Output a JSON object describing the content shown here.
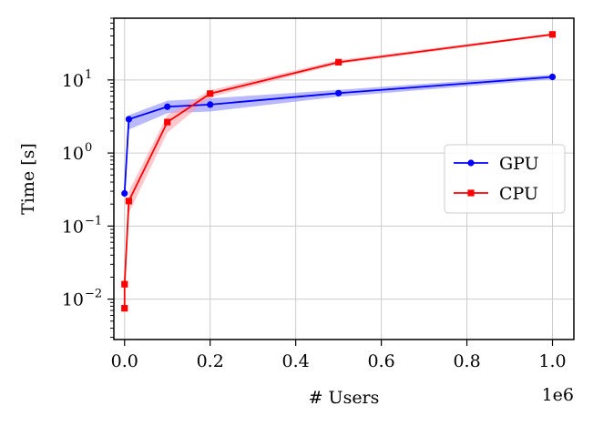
{
  "chart_data": {
    "type": "line",
    "title": "",
    "xlabel": "# Users",
    "ylabel": "Time [s]",
    "x_offset_label": "1e6",
    "x_scale": "linear",
    "y_scale": "log",
    "xlim": [
      -0.025,
      1.05
    ],
    "ylim": [
      0.0028,
      70
    ],
    "x_ticks": [
      0.0,
      0.2,
      0.4,
      0.6,
      0.8,
      1.0
    ],
    "x_tick_labels": [
      "0.0",
      "0.2",
      "0.4",
      "0.6",
      "0.8",
      "1.0"
    ],
    "y_ticks": [
      0.01,
      0.1,
      1,
      10
    ],
    "y_tick_base": [
      "10",
      "10",
      "10",
      "10"
    ],
    "y_tick_exp": [
      "−2",
      "−1",
      "0",
      "1"
    ],
    "grid": true,
    "legend_position": "center-right",
    "series": [
      {
        "name": "GPU",
        "color": "#0000ff",
        "band_color": "#8080ff",
        "marker": "circle",
        "x": [
          0.0,
          0.01,
          0.1,
          0.2,
          0.5,
          1.0
        ],
        "y": [
          0.28,
          2.9,
          4.3,
          4.6,
          6.6,
          11.0
        ],
        "y_low": [
          0.27,
          2.1,
          3.5,
          3.7,
          5.9,
          10.2
        ],
        "y_high": [
          0.29,
          3.3,
          5.2,
          5.6,
          7.3,
          11.8
        ]
      },
      {
        "name": "CPU",
        "color": "#ff0000",
        "band_color": "#ff9aa2",
        "marker": "square",
        "x": [
          0.0,
          0.0001,
          0.01,
          0.1,
          0.2,
          0.5,
          1.0
        ],
        "y": [
          0.0075,
          0.016,
          0.22,
          2.65,
          6.5,
          17.5,
          42.0
        ],
        "y_low": [
          0.0073,
          0.0155,
          0.15,
          1.9,
          5.8,
          16.5,
          40.5
        ],
        "y_high": [
          0.0077,
          0.0165,
          0.3,
          3.3,
          7.2,
          18.7,
          43.5
        ]
      }
    ]
  }
}
